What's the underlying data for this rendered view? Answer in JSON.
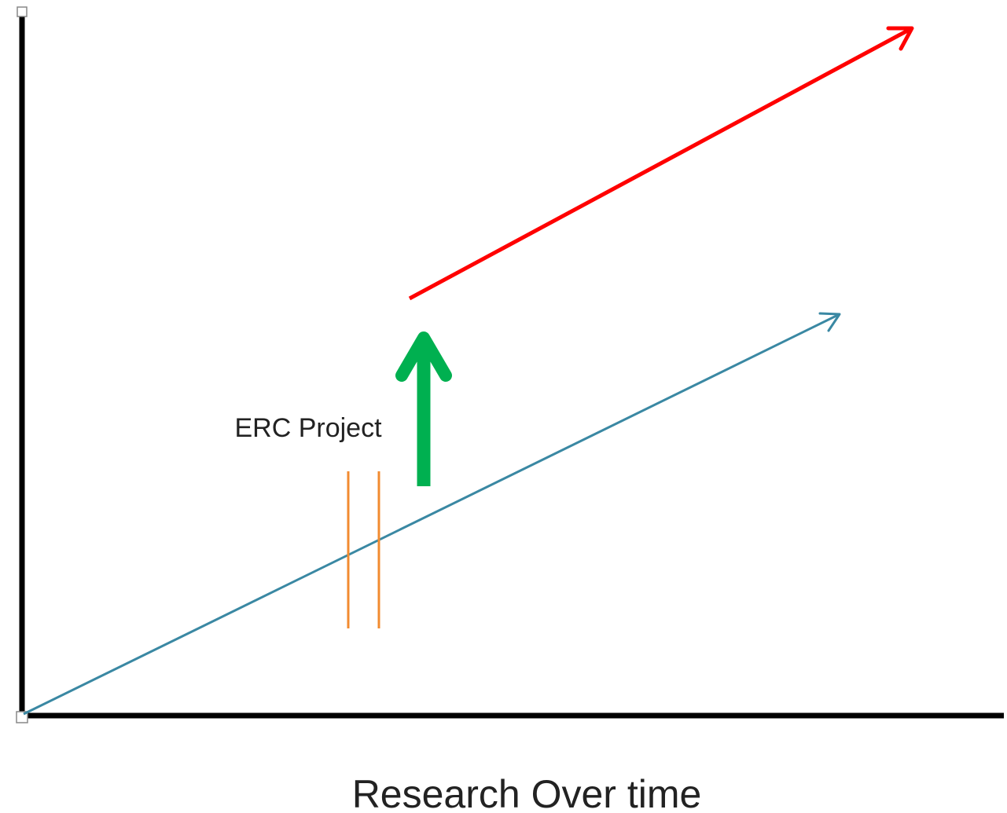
{
  "diagram": {
    "project_label": "ERC Project",
    "x_axis_title": "Research Over time"
  },
  "colors": {
    "axes": "#000000",
    "baseline_trend": "#3a88a3",
    "boosted_trend": "#ff0000",
    "boost_arrow": "#00b050",
    "project_markers": "#f28b30",
    "label_text": "#222222"
  },
  "icons": {
    "boost": "up-arrow",
    "trend_heads": "arrowhead"
  }
}
